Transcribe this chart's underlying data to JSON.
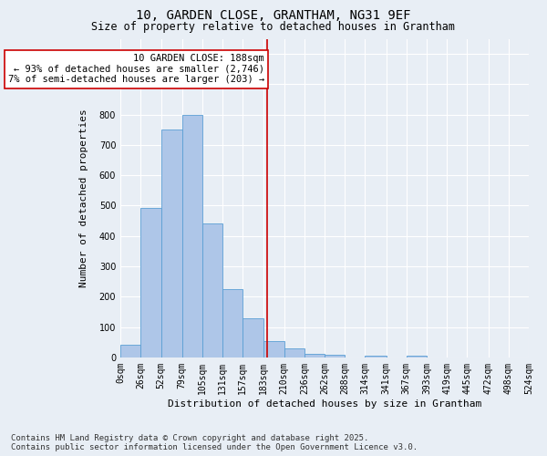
{
  "title_line1": "10, GARDEN CLOSE, GRANTHAM, NG31 9EF",
  "title_line2": "Size of property relative to detached houses in Grantham",
  "xlabel": "Distribution of detached houses by size in Grantham",
  "ylabel": "Number of detached properties",
  "footnote_line1": "Contains HM Land Registry data © Crown copyright and database right 2025.",
  "footnote_line2": "Contains public sector information licensed under the Open Government Licence v3.0.",
  "bin_edges": [
    0,
    26,
    52,
    79,
    105,
    131,
    157,
    183,
    210,
    236,
    262,
    288,
    314,
    341,
    367,
    393,
    419,
    445,
    472,
    498,
    524
  ],
  "bar_values": [
    43,
    492,
    750,
    800,
    440,
    225,
    130,
    55,
    30,
    13,
    8,
    0,
    5,
    0,
    5,
    0,
    0,
    0,
    0,
    0
  ],
  "bar_color": "#aec6e8",
  "bar_edge_color": "#5a9fd4",
  "property_size": 188,
  "vline_color": "#cc0000",
  "annotation_line1": "10 GARDEN CLOSE: 188sqm",
  "annotation_line2": "← 93% of detached houses are smaller (2,746)",
  "annotation_line3": "7% of semi-detached houses are larger (203) →",
  "annotation_box_color": "#ffffff",
  "annotation_box_edge_color": "#cc0000",
  "ylim": [
    0,
    1050
  ],
  "background_color": "#e8eef5",
  "grid_color": "#ffffff",
  "title_fontsize": 10,
  "subtitle_fontsize": 8.5,
  "tick_label_size": 7,
  "ylabel_fontsize": 8,
  "xlabel_fontsize": 8,
  "annotation_fontsize": 7.5,
  "footnote_fontsize": 6.5
}
